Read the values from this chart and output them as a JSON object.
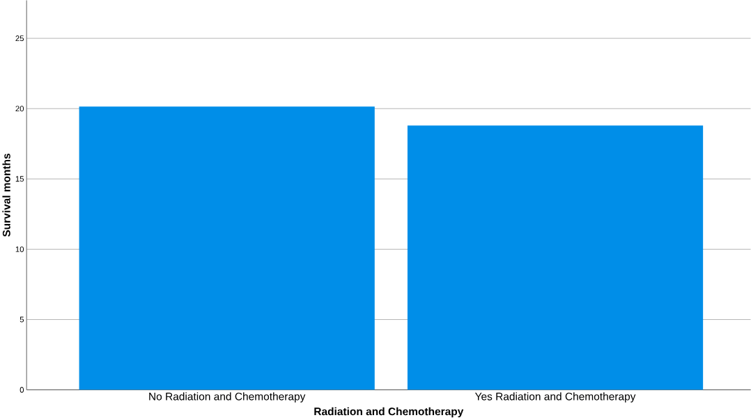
{
  "chart_data": {
    "type": "bar",
    "xlabel": "Radiation and Chemotherapy",
    "ylabel": "Survival months",
    "categories": [
      "No Radiation and Chemotherapy",
      "Yes Radiation and Chemotherapy"
    ],
    "values": [
      20.15,
      18.8
    ],
    "color": "#008ee8",
    "ylim": [
      0,
      27.7
    ],
    "yticks": [
      0,
      5,
      10,
      15,
      20,
      25
    ],
    "grid": "y"
  }
}
